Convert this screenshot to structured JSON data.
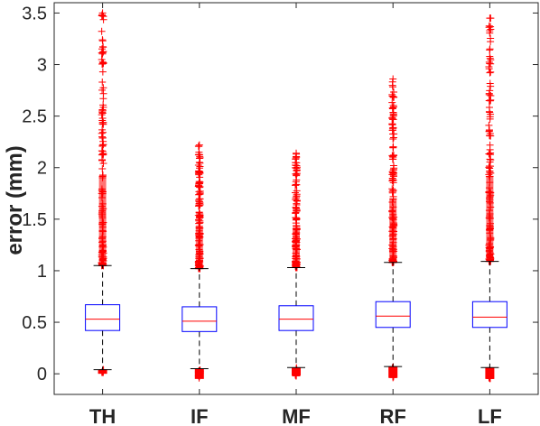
{
  "chart_data": {
    "type": "box",
    "ylabel": "error (mm)",
    "ylim": [
      -0.2,
      3.6
    ],
    "yticks": [
      0,
      0.5,
      1,
      1.5,
      2,
      2.5,
      3,
      3.5
    ],
    "ytick_labels": [
      "0",
      "0.5",
      "1",
      "1.5",
      "2",
      "2.5",
      "3",
      "3.5"
    ],
    "categories": [
      "TH",
      "IF",
      "MF",
      "RF",
      "LF"
    ],
    "grid": false,
    "colors": {
      "box": "#0000ff",
      "median": "#ff0000",
      "whisker": "#000000",
      "outlier": "#ff0000",
      "axis": "#262626"
    },
    "boxes": [
      {
        "label": "TH",
        "whisker_low": 0.04,
        "q1": 0.42,
        "median": 0.53,
        "q3": 0.67,
        "whisker_high": 1.05,
        "outliers_high_range": [
          1.05,
          3.5
        ],
        "outliers_low_range": [
          0.0,
          0.04
        ]
      },
      {
        "label": "IF",
        "whisker_low": 0.05,
        "q1": 0.41,
        "median": 0.51,
        "q3": 0.65,
        "whisker_high": 1.02,
        "outliers_high_range": [
          1.02,
          2.22
        ],
        "outliers_low_range": [
          -0.05,
          0.05
        ]
      },
      {
        "label": "MF",
        "whisker_low": 0.06,
        "q1": 0.42,
        "median": 0.53,
        "q3": 0.66,
        "whisker_high": 1.03,
        "outliers_high_range": [
          1.03,
          2.14
        ],
        "outliers_low_range": [
          -0.02,
          0.06
        ]
      },
      {
        "label": "RF",
        "whisker_low": 0.07,
        "q1": 0.45,
        "median": 0.56,
        "q3": 0.7,
        "whisker_high": 1.08,
        "outliers_high_range": [
          1.08,
          2.86
        ],
        "outliers_low_range": [
          -0.04,
          0.07
        ]
      },
      {
        "label": "LF",
        "whisker_low": 0.06,
        "q1": 0.45,
        "median": 0.55,
        "q3": 0.7,
        "whisker_high": 1.09,
        "outliers_high_range": [
          1.09,
          3.45
        ],
        "outliers_low_range": [
          -0.05,
          0.06
        ]
      }
    ]
  }
}
